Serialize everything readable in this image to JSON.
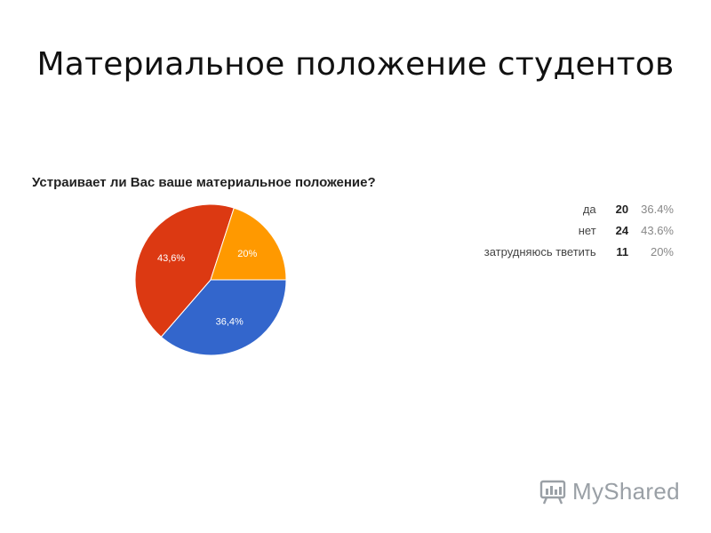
{
  "slide": {
    "title": "Материальное положение студентов"
  },
  "chart_data": {
    "type": "pie",
    "title": "Устраивает ли Вас ваше материальное положение?",
    "categories": [
      "да",
      "нет",
      "затрудняюсь тветить"
    ],
    "values": [
      20,
      24,
      11
    ],
    "percentages": [
      "36.4%",
      "43.6%",
      "20%"
    ],
    "slice_labels": [
      "36,4%",
      "43,6%",
      "20%"
    ],
    "colors": [
      "#3366cc",
      "#dc3912",
      "#ff9900"
    ],
    "legend_position": "right"
  },
  "watermark": {
    "text": "MyShared",
    "icon": "myshared-logo-icon"
  }
}
